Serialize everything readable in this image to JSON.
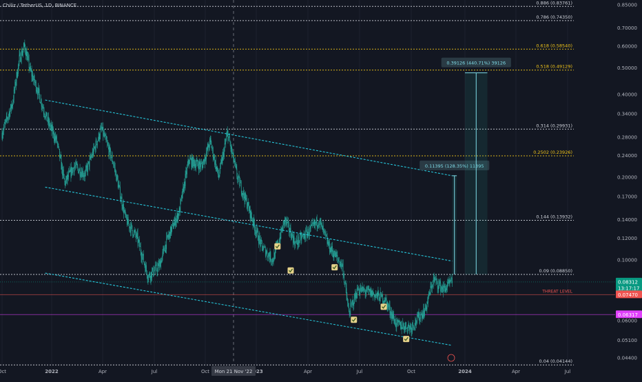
{
  "symbol_line": "Chiliz / TetherUS, 1D, BINANCE",
  "crosshair_date": "Mon 21 Nov '22",
  "colors": {
    "background": "#131722",
    "candle_up": "#26a69a",
    "candle_down": "#26a69a",
    "channel": "#26c6da",
    "fib_white": "#d1d4dc",
    "fib_yellow": "#f0c419",
    "threat": "#ef5350",
    "magenta": "#e040fb",
    "current_price": "#089981"
  },
  "chart_data": {
    "type": "candlestick",
    "title": "Chiliz / TetherUS, 1D, BINANCE",
    "y_scale": "log",
    "ylim": [
      0.0425,
      0.86
    ],
    "x_tick_labels": [
      {
        "label": "Oct",
        "date": "2021-10-01"
      },
      {
        "label": "2022",
        "date": "2022-01-01"
      },
      {
        "label": "Apr",
        "date": "2022-04-01"
      },
      {
        "label": "Jul",
        "date": "2022-07-01"
      },
      {
        "label": "Oct",
        "date": "2022-10-01"
      },
      {
        "label": "2023",
        "date": "2023-01-01"
      },
      {
        "label": "Apr",
        "date": "2023-04-01"
      },
      {
        "label": "Jul",
        "date": "2023-07-01"
      },
      {
        "label": "Oct",
        "date": "2023-10-01"
      },
      {
        "label": "2024",
        "date": "2024-01-01"
      },
      {
        "label": "Apr",
        "date": "2024-04-01"
      },
      {
        "label": "Jul",
        "date": "2024-07-01"
      }
    ],
    "y_tick_labels": [
      "0.85000",
      "0.70000",
      "0.60000",
      "0.50000",
      "0.40000",
      "0.34000",
      "0.28000",
      "0.24000",
      "0.20000",
      "0.17000",
      "0.14000",
      "0.12000",
      "0.10000",
      "0.06000",
      "0.05100",
      "0.04400"
    ],
    "fib_levels": [
      {
        "label": "0.886 (0.83761)",
        "price": 0.83761,
        "color": "white"
      },
      {
        "label": "0.786 (0.74350)",
        "price": 0.7435,
        "color": "white"
      },
      {
        "label": "0.618 (0.58540)",
        "price": 0.5854,
        "color": "yellow"
      },
      {
        "label": "0.518 (0.49129)",
        "price": 0.49129,
        "color": "yellow"
      },
      {
        "label": "0.314 (0.29931)",
        "price": 0.29931,
        "color": "white"
      },
      {
        "label": "0.2502 (0.23926)",
        "price": 0.23926,
        "color": "yellow"
      },
      {
        "label": "0.144 (0.13932)",
        "price": 0.13932,
        "color": "white"
      },
      {
        "label": "0.09 (0.08850)",
        "price": 0.0885,
        "color": "white"
      },
      {
        "label": "0.04 (0.04144)",
        "price": 0.04144,
        "color": "white"
      }
    ],
    "horizontal_lines": [
      {
        "label": "THREAT LEVEL",
        "price": 0.0747,
        "color": "threat"
      },
      {
        "price": 0.06317,
        "color": "magenta"
      },
      {
        "price": 0.08312,
        "color": "current"
      }
    ],
    "price_badges": [
      {
        "value": "0.08312",
        "sub": "13:17:17",
        "color": "current",
        "price": 0.08312
      },
      {
        "value": "0.07470",
        "color": "threat",
        "price": 0.0747
      },
      {
        "value": "0.06317",
        "color": "magenta",
        "price": 0.06317
      }
    ],
    "measurements": [
      {
        "label": "0.11395 (128.35%) 11395",
        "from_price": 0.0885,
        "to_price": 0.2025,
        "date_start": "2023-12-10",
        "date_end": "2023-12-18"
      },
      {
        "label": "0.39126 (440.71%) 39126",
        "from_price": 0.0885,
        "to_price": 0.48,
        "date_start": "2024-01-01",
        "date_end": "2024-02-10"
      }
    ],
    "channel_lines": [
      {
        "from": {
          "date": "2021-12-20",
          "price": 0.382
        },
        "to": {
          "date": "2023-12-10",
          "price": 0.2025
        }
      },
      {
        "from": {
          "date": "2021-12-20",
          "price": 0.184
        },
        "to": {
          "date": "2023-12-10",
          "price": 0.099
        }
      },
      {
        "from": {
          "date": "2021-12-20",
          "price": 0.0895
        },
        "to": {
          "date": "2023-12-10",
          "price": 0.0488
        }
      }
    ],
    "check_markers": [
      {
        "date": "2023-02-07",
        "price": 0.112
      },
      {
        "date": "2023-03-02",
        "price": 0.0915
      },
      {
        "date": "2023-05-18",
        "price": 0.094
      },
      {
        "date": "2023-06-21",
        "price": 0.0605
      },
      {
        "date": "2023-08-13",
        "price": 0.0675
      },
      {
        "date": "2023-09-22",
        "price": 0.0515
      }
    ],
    "price_path": [
      {
        "date": "2021-10-01",
        "price": 0.29
      },
      {
        "date": "2021-10-20",
        "price": 0.37
      },
      {
        "date": "2021-11-02",
        "price": 0.54
      },
      {
        "date": "2021-11-12",
        "price": 0.6
      },
      {
        "date": "2021-11-22",
        "price": 0.49
      },
      {
        "date": "2021-12-05",
        "price": 0.42
      },
      {
        "date": "2021-12-22",
        "price": 0.33
      },
      {
        "date": "2022-01-10",
        "price": 0.27
      },
      {
        "date": "2022-01-24",
        "price": 0.19
      },
      {
        "date": "2022-02-10",
        "price": 0.22
      },
      {
        "date": "2022-03-01",
        "price": 0.205
      },
      {
        "date": "2022-03-30",
        "price": 0.3
      },
      {
        "date": "2022-04-20",
        "price": 0.225
      },
      {
        "date": "2022-05-12",
        "price": 0.14
      },
      {
        "date": "2022-06-01",
        "price": 0.12
      },
      {
        "date": "2022-06-20",
        "price": 0.087
      },
      {
        "date": "2022-07-10",
        "price": 0.095
      },
      {
        "date": "2022-07-25",
        "price": 0.12
      },
      {
        "date": "2022-08-15",
        "price": 0.15
      },
      {
        "date": "2022-09-01",
        "price": 0.23
      },
      {
        "date": "2022-09-25",
        "price": 0.22
      },
      {
        "date": "2022-10-10",
        "price": 0.27
      },
      {
        "date": "2022-10-25",
        "price": 0.2
      },
      {
        "date": "2022-11-10",
        "price": 0.29
      },
      {
        "date": "2022-11-28",
        "price": 0.2
      },
      {
        "date": "2022-12-18",
        "price": 0.155
      },
      {
        "date": "2023-01-10",
        "price": 0.112
      },
      {
        "date": "2023-01-30",
        "price": 0.1
      },
      {
        "date": "2023-02-20",
        "price": 0.14
      },
      {
        "date": "2023-03-10",
        "price": 0.115
      },
      {
        "date": "2023-04-05",
        "price": 0.128
      },
      {
        "date": "2023-04-20",
        "price": 0.14
      },
      {
        "date": "2023-05-08",
        "price": 0.112
      },
      {
        "date": "2023-06-01",
        "price": 0.095
      },
      {
        "date": "2023-06-12",
        "price": 0.064
      },
      {
        "date": "2023-06-28",
        "price": 0.078
      },
      {
        "date": "2023-07-20",
        "price": 0.076
      },
      {
        "date": "2023-08-15",
        "price": 0.072
      },
      {
        "date": "2023-09-05",
        "price": 0.058
      },
      {
        "date": "2023-10-01",
        "price": 0.057
      },
      {
        "date": "2023-10-25",
        "price": 0.066
      },
      {
        "date": "2023-11-08",
        "price": 0.085
      },
      {
        "date": "2023-11-25",
        "price": 0.078
      },
      {
        "date": "2023-12-10",
        "price": 0.0831
      }
    ]
  }
}
